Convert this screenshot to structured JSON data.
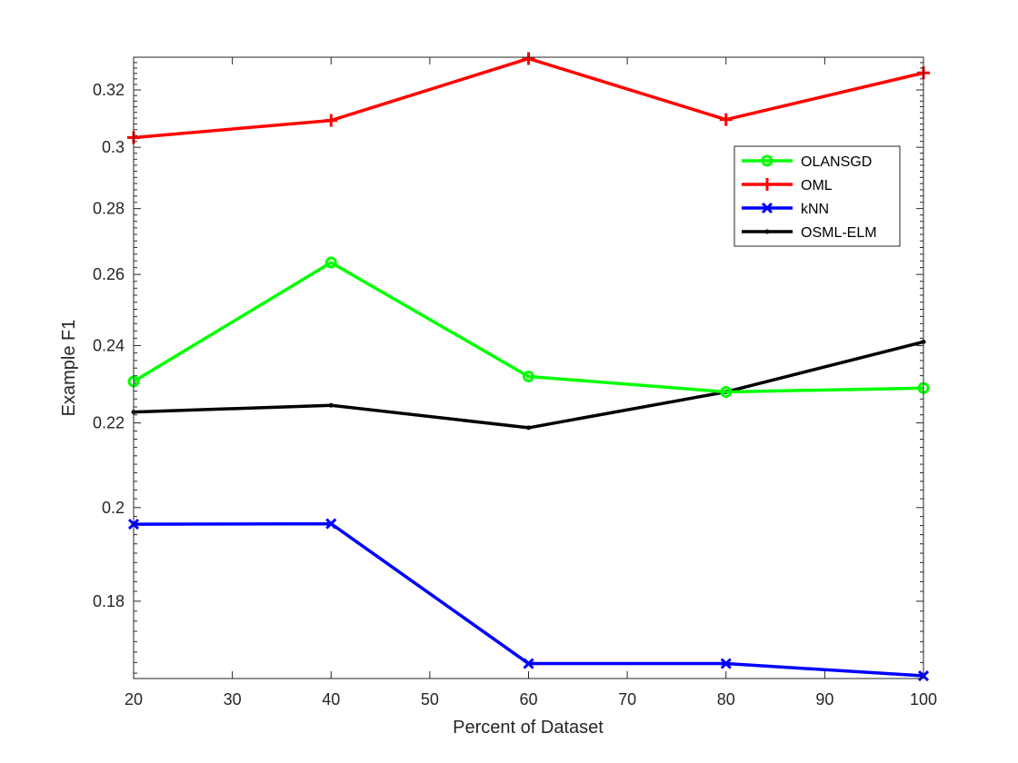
{
  "chart_data": {
    "type": "line",
    "title": "",
    "xlabel": "Percent of Dataset",
    "ylabel": "Example F1",
    "x": [
      20,
      40,
      60,
      80,
      100
    ],
    "xlim": [
      20,
      100
    ],
    "ylim": [
      0.165,
      0.332
    ],
    "yscale": "log",
    "xticks": [
      20,
      30,
      40,
      50,
      60,
      70,
      80,
      90,
      100
    ],
    "yticks": [
      0.18,
      0.2,
      0.22,
      0.24,
      0.26,
      0.28,
      0.3,
      0.32
    ],
    "ytick_labels": [
      "0.18",
      "0.2",
      "0.22",
      "0.24",
      "0.26",
      "0.28",
      "0.3",
      "0.32"
    ],
    "grid": false,
    "legend_position": "top-right",
    "series": [
      {
        "name": "OLANSGD",
        "color": "#00ff00",
        "marker": "circle",
        "values": [
          0.2305,
          0.2635,
          0.2318,
          0.2278,
          0.2288
        ]
      },
      {
        "name": "OML",
        "color": "#ff0000",
        "marker": "plus",
        "values": [
          0.3033,
          0.3092,
          0.3315,
          0.3095,
          0.3262
        ]
      },
      {
        "name": "kNN",
        "color": "#0000ff",
        "marker": "x",
        "values": [
          0.1963,
          0.1964,
          0.1678,
          0.1678,
          0.1655
        ]
      },
      {
        "name": "OSML-ELM",
        "color": "#000000",
        "marker": "dot",
        "values": [
          0.2227,
          0.2244,
          0.2188,
          0.2278,
          0.241
        ]
      }
    ]
  }
}
